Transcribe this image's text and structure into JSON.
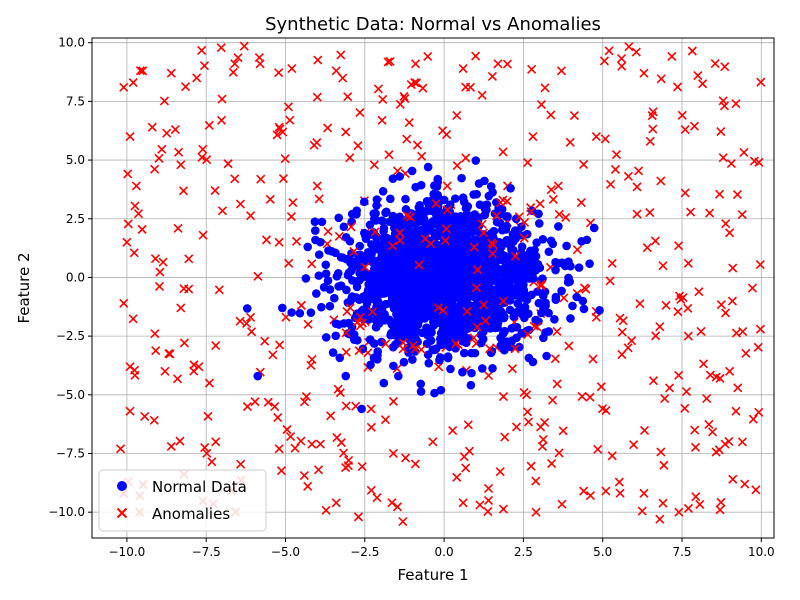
{
  "chart_data": {
    "type": "scatter",
    "title": "Synthetic Data: Normal vs Anomalies",
    "xlabel": "Feature 1",
    "ylabel": "Feature 2",
    "xlim": [
      -11.1,
      10.4
    ],
    "ylim": [
      -11.1,
      10.2
    ],
    "xticks": [
      -10.0,
      -7.5,
      -5.0,
      -2.5,
      0.0,
      2.5,
      5.0,
      7.5,
      10.0
    ],
    "yticks": [
      -10.0,
      -7.5,
      -5.0,
      -2.5,
      0.0,
      2.5,
      5.0,
      7.5,
      10.0
    ],
    "xtick_labels": [
      "−10.0",
      "−7.5",
      "−5.0",
      "−2.5",
      "0.0",
      "2.5",
      "5.0",
      "7.5",
      "10.0"
    ],
    "ytick_labels": [
      "−10.0",
      "−7.5",
      "−5.0",
      "−2.5",
      "0.0",
      "2.5",
      "5.0",
      "7.5",
      "10.0"
    ],
    "grid": true,
    "legend_position": "lower-left",
    "series": [
      {
        "name": "Normal Data",
        "marker": "circle",
        "color": "#0000ff",
        "distribution": {
          "mean": [
            0.0,
            0.0
          ],
          "std": [
            1.5,
            1.5
          ],
          "approx_count": 2000
        },
        "points": [
          [
            -5.1,
            -1.3
          ],
          [
            -4.2,
            -1.5
          ],
          [
            -3.1,
            -4.2
          ],
          [
            -2.6,
            -5.6
          ],
          [
            -0.1,
            -4.8
          ],
          [
            4.5,
            1.6
          ],
          [
            4.9,
            -1.4
          ],
          [
            3.6,
            0.6
          ],
          [
            3.0,
            2.3
          ],
          [
            2.0,
            2.6
          ],
          [
            1.1,
            4.0
          ],
          [
            -1.4,
            4.3
          ],
          [
            -2.4,
            0.8
          ],
          [
            3.3,
            -2.3
          ],
          [
            2.8,
            -3.6
          ],
          [
            -4.3,
            1.3
          ],
          [
            -3.9,
            1.5
          ],
          [
            -1.9,
            -4.5
          ],
          [
            1.3,
            2.9
          ],
          [
            0.6,
            3.4
          ],
          [
            -0.4,
            3.1
          ],
          [
            -3.5,
            -3.2
          ],
          [
            3.2,
            -1.2
          ],
          [
            2.4,
            1.8
          ],
          [
            -2.2,
            2.5
          ],
          [
            0.2,
            -3.9
          ],
          [
            -1.0,
            -3.5
          ],
          [
            1.9,
            -3.1
          ],
          [
            -3.0,
            0.2
          ],
          [
            2.9,
            0.9
          ]
        ]
      },
      {
        "name": "Anomalies",
        "marker": "x",
        "color": "#ff0000",
        "distribution": {
          "uniform_range": [
            -10.0,
            10.0
          ],
          "approx_count": 500
        },
        "points": [
          [
            -10.1,
            8.1
          ],
          [
            -9.8,
            8.3
          ],
          [
            -9.5,
            8.8
          ],
          [
            -8.6,
            8.7
          ],
          [
            -7.8,
            8.5
          ],
          [
            -6.6,
            9.1
          ],
          [
            -5.8,
            9.1
          ],
          [
            -4.8,
            8.9
          ],
          [
            -3.4,
            8.8
          ],
          [
            -1.7,
            9.2
          ],
          [
            -0.9,
            9.1
          ],
          [
            0.6,
            8.9
          ],
          [
            1.7,
            9.1
          ],
          [
            3.7,
            8.8
          ],
          [
            5.6,
            9.0
          ],
          [
            6.3,
            8.7
          ],
          [
            8.0,
            8.6
          ],
          [
            9.2,
            7.4
          ],
          [
            -9.9,
            6.0
          ],
          [
            -9.2,
            6.4
          ],
          [
            -7.0,
            7.6
          ],
          [
            -5.2,
            6.4
          ],
          [
            -3.1,
            6.2
          ],
          [
            -1.1,
            6.6
          ],
          [
            0.4,
            6.9
          ],
          [
            2.8,
            6.0
          ],
          [
            4.8,
            6.0
          ],
          [
            6.5,
            5.8
          ],
          [
            7.6,
            6.3
          ],
          [
            8.8,
            5.1
          ],
          [
            -9.7,
            3.9
          ],
          [
            -8.3,
            4.8
          ],
          [
            -6.6,
            4.2
          ],
          [
            -4.0,
            3.9
          ],
          [
            -2.2,
            4.8
          ],
          [
            0.1,
            3.9
          ],
          [
            2.0,
            3.9
          ],
          [
            3.6,
            3.9
          ],
          [
            5.4,
            4.6
          ],
          [
            7.6,
            3.6
          ],
          [
            -10.0,
            1.5
          ],
          [
            -9.1,
            0.8
          ],
          [
            -7.6,
            1.8
          ],
          [
            -5.6,
            1.6
          ],
          [
            -4.9,
            0.6
          ],
          [
            5.3,
            0.6
          ],
          [
            6.9,
            0.5
          ],
          [
            7.7,
            0.6
          ],
          [
            9.0,
            1.9
          ],
          [
            9.1,
            0.4
          ],
          [
            -10.1,
            -1.1
          ],
          [
            -8.3,
            -1.3
          ],
          [
            -7.2,
            -2.9
          ],
          [
            -5.4,
            -3.3
          ],
          [
            -6.1,
            -1.7
          ],
          [
            4.8,
            -1.7
          ],
          [
            5.8,
            -3.0
          ],
          [
            6.8,
            -2.1
          ],
          [
            8.1,
            -2.3
          ],
          [
            9.0,
            -4.0
          ],
          [
            -9.9,
            -3.8
          ],
          [
            -8.8,
            -4.0
          ],
          [
            -7.4,
            -4.5
          ],
          [
            -6.2,
            -5.5
          ],
          [
            -4.4,
            -5.3
          ],
          [
            -2.3,
            -5.6
          ],
          [
            2.6,
            -5.0
          ],
          [
            4.6,
            -5.1
          ],
          [
            6.6,
            -4.4
          ],
          [
            8.7,
            -4.3
          ],
          [
            -9.9,
            -5.7
          ],
          [
            -8.6,
            -7.2
          ],
          [
            -7.2,
            -7.0
          ],
          [
            -5.2,
            -7.3
          ],
          [
            -3.9,
            -7.1
          ],
          [
            -1.6,
            -7.5
          ],
          [
            0.8,
            -7.4
          ],
          [
            3.1,
            -7.2
          ],
          [
            5.3,
            -7.6
          ],
          [
            7.9,
            -6.5
          ],
          [
            -10.1,
            -9.2
          ],
          [
            -9.6,
            -9.3
          ],
          [
            -8.2,
            -8.4
          ],
          [
            -6.7,
            -9.1
          ],
          [
            -4.3,
            -8.9
          ],
          [
            -3.4,
            -9.6
          ],
          [
            -1.3,
            -10.4
          ],
          [
            0.6,
            -9.6
          ],
          [
            2.9,
            -10.0
          ],
          [
            4.4,
            -9.1
          ],
          [
            5.1,
            -9.1
          ],
          [
            6.8,
            -10.3
          ],
          [
            7.4,
            -10.0
          ],
          [
            8.7,
            -9.9
          ],
          [
            9.2,
            -5.7
          ],
          [
            -10.2,
            -7.3
          ],
          [
            -2.7,
            -10.2
          ],
          [
            1.4,
            -9.5
          ],
          [
            9.1,
            -8.6
          ],
          [
            -9.6,
            -10.0
          ]
        ]
      }
    ]
  }
}
